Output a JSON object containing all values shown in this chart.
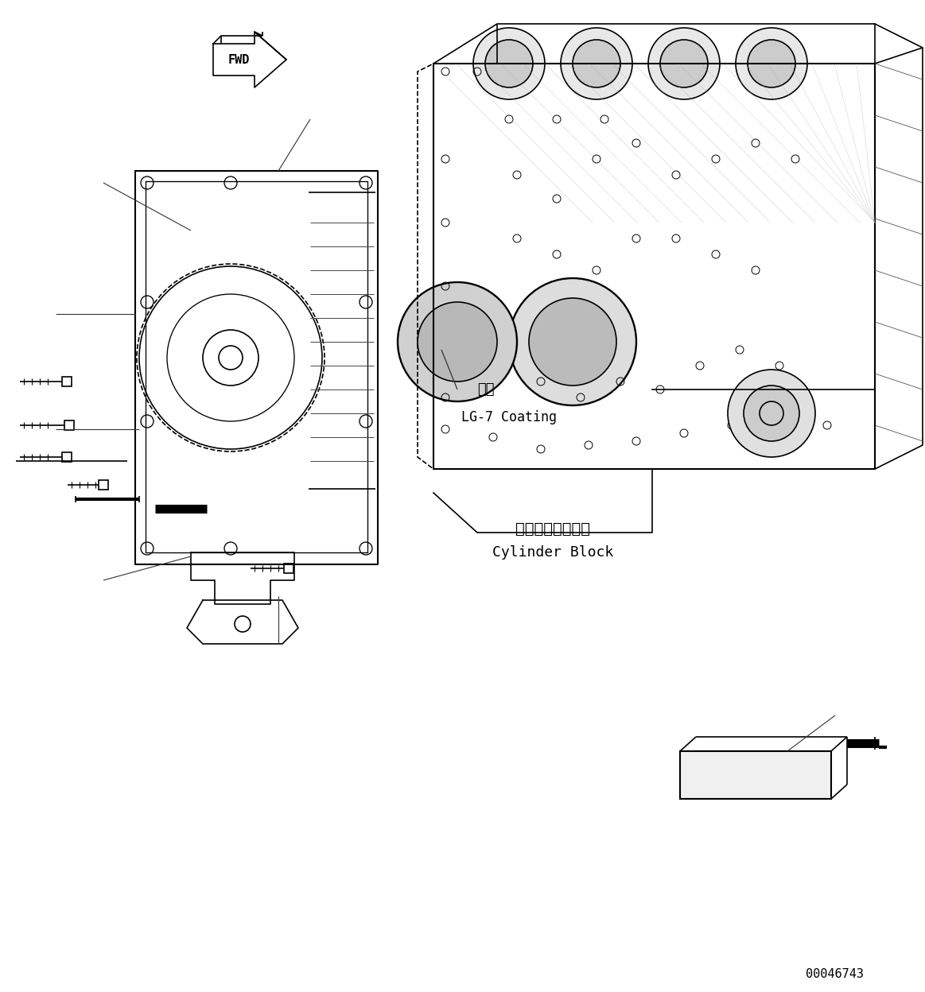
{
  "background_color": "#ffffff",
  "line_color": "#000000",
  "fig_width": 11.63,
  "fig_height": 12.48,
  "dpi": 100,
  "part_number": "00046743",
  "coating_label_jp": "途布",
  "coating_label_en": "LG-7 Coating",
  "cylinder_block_jp": "シリンダブロック",
  "cylinder_block_en": "Cylinder Block",
  "fwd_label": "FWD"
}
